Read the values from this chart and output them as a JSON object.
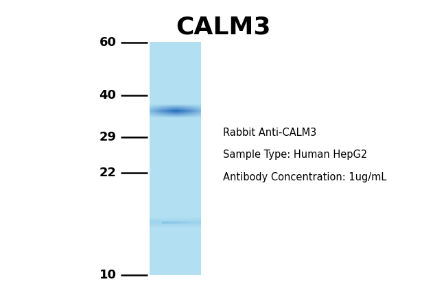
{
  "title": "CALM3",
  "title_fontsize": 26,
  "title_fontweight": "bold",
  "background_color": "#ffffff",
  "lane_color": "#b8e0f0",
  "band_color_dark": "#1a5fa0",
  "band_color_mid": "#3a8fc8",
  "mw_markers": [
    60,
    40,
    29,
    22,
    10
  ],
  "annotation_lines": [
    "Rabbit Anti-CALM3",
    "Sample Type: Human HepG2",
    "Antibody Concentration: 1ug/mL"
  ],
  "annotation_fontsize": 10.5,
  "tick_label_fontsize": 13,
  "tick_label_fontweight": "bold",
  "fig_width": 6.5,
  "fig_height": 4.33,
  "dpi": 100
}
